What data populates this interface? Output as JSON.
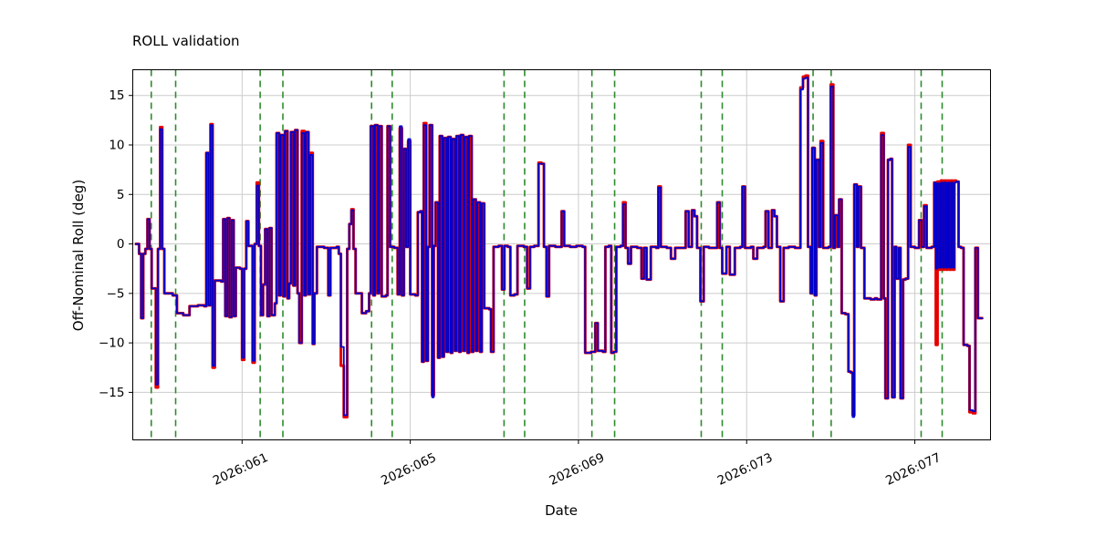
{
  "chart_data": {
    "type": "line",
    "title": "ROLL validation",
    "xlabel": "Date",
    "ylabel": "Off-Nominal Roll (deg)",
    "xlim": [
      58.4,
      78.8
    ],
    "ylim": [
      -19.8,
      17.6
    ],
    "grid": true,
    "grid_color": "#cccccc",
    "background": "#ffffff",
    "xticks": {
      "values": [
        61,
        65,
        69,
        73,
        77
      ],
      "labels": [
        "2026:061",
        "2026:065",
        "2026:069",
        "2026:073",
        "2026:077"
      ]
    },
    "yticks": {
      "values": [
        -15,
        -10,
        -5,
        0,
        5,
        10,
        15
      ],
      "labels": [
        "−15",
        "−10",
        "−5",
        "0",
        "5",
        "10",
        "15"
      ]
    },
    "vlines": {
      "color": "#2e8b2e",
      "style": "dashed",
      "x": [
        58.84,
        59.42,
        61.43,
        61.97,
        64.08,
        64.57,
        67.23,
        67.72,
        69.32,
        69.86,
        71.92,
        72.42,
        74.58,
        75.01,
        77.15,
        77.65
      ]
    },
    "series": [
      {
        "name": "red",
        "color": "#e50000",
        "linewidth": 3
      },
      {
        "name": "blue",
        "color": "#0000cd",
        "linewidth": 1.8
      }
    ],
    "points_format": "[day_of_year_2026, red_deg, blue_deg(optional, equals red when omitted)]",
    "points": [
      [
        58.45,
        0
      ],
      [
        58.55,
        -1
      ],
      [
        58.6,
        -7.5
      ],
      [
        58.65,
        -1
      ],
      [
        58.7,
        -0.5
      ],
      [
        58.75,
        2.5
      ],
      [
        58.8,
        -0.5
      ],
      [
        58.85,
        -4.5
      ],
      [
        58.95,
        -14.5,
        -14.2
      ],
      [
        59.0,
        -0.5
      ],
      [
        59.05,
        11.8,
        11.6
      ],
      [
        59.1,
        -0.5
      ],
      [
        59.15,
        -5
      ],
      [
        59.35,
        -5.2
      ],
      [
        59.45,
        -7
      ],
      [
        59.6,
        -7.2
      ],
      [
        59.75,
        -6.3
      ],
      [
        59.95,
        -6.2
      ],
      [
        60.1,
        -6.3
      ],
      [
        60.15,
        9.2
      ],
      [
        60.2,
        -6.2
      ],
      [
        60.25,
        12.1,
        12
      ],
      [
        60.3,
        -12.5,
        -12.3
      ],
      [
        60.35,
        -3.7
      ],
      [
        60.5,
        -3.8
      ],
      [
        60.55,
        2.5
      ],
      [
        60.6,
        -7.3
      ],
      [
        60.65,
        2.6
      ],
      [
        60.7,
        -7.4
      ],
      [
        60.75,
        2.4
      ],
      [
        60.8,
        -7.3
      ],
      [
        60.85,
        -2.4
      ],
      [
        60.95,
        -2.5
      ],
      [
        61.0,
        -11.7,
        -11.5
      ],
      [
        61.05,
        -2.5
      ],
      [
        61.1,
        2.3
      ],
      [
        61.15,
        -0.2
      ],
      [
        61.25,
        -12,
        -11.8
      ],
      [
        61.3,
        0
      ],
      [
        61.35,
        6.2,
        5.9
      ],
      [
        61.4,
        -0.2
      ],
      [
        61.45,
        -7.2
      ],
      [
        61.5,
        -4.1
      ],
      [
        61.55,
        1.5
      ],
      [
        61.6,
        -7.3
      ],
      [
        61.65,
        1.6
      ],
      [
        61.7,
        -7.2
      ],
      [
        61.78,
        -6
      ],
      [
        61.82,
        11.2
      ],
      [
        61.88,
        -5.2
      ],
      [
        61.92,
        11
      ],
      [
        61.98,
        -5.3
      ],
      [
        62.02,
        11.4
      ],
      [
        62.08,
        -5.5
      ],
      [
        62.12,
        -4
      ],
      [
        62.16,
        11.3
      ],
      [
        62.22,
        -4.2
      ],
      [
        62.26,
        11.5
      ],
      [
        62.32,
        -5
      ],
      [
        62.36,
        -10
      ],
      [
        62.42,
        11.4,
        11.2
      ],
      [
        62.48,
        -5.2
      ],
      [
        62.52,
        11.3
      ],
      [
        62.58,
        -5.1
      ],
      [
        62.62,
        9.2,
        9
      ],
      [
        62.68,
        -10.1
      ],
      [
        62.72,
        -5
      ],
      [
        62.78,
        -0.3
      ],
      [
        62.95,
        -0.4
      ],
      [
        63.05,
        -5.2
      ],
      [
        63.1,
        -0.4
      ],
      [
        63.25,
        -0.3
      ],
      [
        63.3,
        -1
      ],
      [
        63.35,
        -12.3,
        -10.4
      ],
      [
        63.42,
        -17.5,
        -17.3
      ],
      [
        63.5,
        -0.5
      ],
      [
        63.55,
        2
      ],
      [
        63.6,
        3.5,
        3.4
      ],
      [
        63.65,
        -0.5
      ],
      [
        63.7,
        -5
      ],
      [
        63.85,
        -7
      ],
      [
        63.95,
        -6.8
      ],
      [
        64.02,
        -5
      ],
      [
        64.06,
        11.9
      ],
      [
        64.12,
        -5.2
      ],
      [
        64.16,
        12
      ],
      [
        64.22,
        -5
      ],
      [
        64.26,
        11.9
      ],
      [
        64.32,
        -5.3
      ],
      [
        64.42,
        -5.2
      ],
      [
        64.46,
        11.9
      ],
      [
        64.52,
        -0.3
      ],
      [
        64.62,
        -0.4
      ],
      [
        64.7,
        -5.1
      ],
      [
        64.75,
        11.7,
        11.9
      ],
      [
        64.8,
        -5.2
      ],
      [
        64.85,
        9.6
      ],
      [
        64.9,
        -0.3
      ],
      [
        64.95,
        10.4,
        10.6
      ],
      [
        65.0,
        -5.1
      ],
      [
        65.12,
        -5.2
      ],
      [
        65.18,
        3.2
      ],
      [
        65.24,
        3.3
      ],
      [
        65.28,
        -11.9
      ],
      [
        65.32,
        12.2,
        12
      ],
      [
        65.38,
        -11.8
      ],
      [
        65.42,
        -0.3
      ],
      [
        65.46,
        12
      ],
      [
        65.52,
        -15.3,
        -15.5
      ],
      [
        65.56,
        -0.2
      ],
      [
        65.6,
        4.2
      ],
      [
        65.66,
        -11.5
      ],
      [
        65.7,
        10.9
      ],
      [
        65.76,
        -11.4
      ],
      [
        65.8,
        10.7
      ],
      [
        65.86,
        -10.9
      ],
      [
        65.9,
        10.8
      ],
      [
        65.96,
        -11
      ],
      [
        66.0,
        10.6
      ],
      [
        66.06,
        -10.8
      ],
      [
        66.1,
        10.9
      ],
      [
        66.16,
        -10.9
      ],
      [
        66.2,
        11
      ],
      [
        66.26,
        -10.8
      ],
      [
        66.3,
        10.8
      ],
      [
        66.36,
        -11
      ],
      [
        66.4,
        10.9
      ],
      [
        66.46,
        -10.9
      ],
      [
        66.5,
        4.5
      ],
      [
        66.56,
        -10.8
      ],
      [
        66.6,
        4.2
      ],
      [
        66.66,
        -10.9
      ],
      [
        66.7,
        4.1
      ],
      [
        66.76,
        -6.5
      ],
      [
        66.88,
        -6.6
      ],
      [
        66.92,
        -10.9
      ],
      [
        66.98,
        -0.3
      ],
      [
        67.1,
        -0.2
      ],
      [
        67.18,
        -4.6
      ],
      [
        67.24,
        -0.2
      ],
      [
        67.32,
        -0.3
      ],
      [
        67.38,
        -5.2
      ],
      [
        67.48,
        -5.1
      ],
      [
        67.55,
        -0.2
      ],
      [
        67.7,
        -0.3
      ],
      [
        67.78,
        -4.5
      ],
      [
        67.85,
        -0.3
      ],
      [
        67.95,
        -0.2
      ],
      [
        68.05,
        8.2,
        8.1
      ],
      [
        68.12,
        8.1
      ],
      [
        68.18,
        -0.3
      ],
      [
        68.24,
        -5.3
      ],
      [
        68.3,
        -0.2
      ],
      [
        68.45,
        -0.3
      ],
      [
        68.6,
        3.3
      ],
      [
        68.66,
        -0.2
      ],
      [
        68.8,
        -0.3
      ],
      [
        68.95,
        -0.2
      ],
      [
        69.1,
        -0.3
      ],
      [
        69.16,
        -11
      ],
      [
        69.3,
        -10.9
      ],
      [
        69.4,
        -8
      ],
      [
        69.46,
        -10.8
      ],
      [
        69.58,
        -10.9
      ],
      [
        69.64,
        -0.3
      ],
      [
        69.72,
        -0.2
      ],
      [
        69.78,
        -11
      ],
      [
        69.84,
        -10.9
      ],
      [
        69.9,
        -0.3
      ],
      [
        70.0,
        -0.2
      ],
      [
        70.06,
        4.2,
        4
      ],
      [
        70.12,
        -0.4
      ],
      [
        70.18,
        -2
      ],
      [
        70.25,
        -0.3
      ],
      [
        70.4,
        -0.4
      ],
      [
        70.5,
        -3.5
      ],
      [
        70.56,
        -0.4
      ],
      [
        70.62,
        -3.6
      ],
      [
        70.72,
        -0.3
      ],
      [
        70.85,
        -0.4
      ],
      [
        70.9,
        5.8,
        5.7
      ],
      [
        70.96,
        -0.3
      ],
      [
        71.1,
        -0.4
      ],
      [
        71.2,
        -1.5
      ],
      [
        71.3,
        -0.4
      ],
      [
        71.5,
        -0.4
      ],
      [
        71.55,
        3.3
      ],
      [
        71.62,
        -0.3
      ],
      [
        71.7,
        3.4
      ],
      [
        71.76,
        2.8
      ],
      [
        71.82,
        -0.4
      ],
      [
        71.9,
        -5.8
      ],
      [
        71.98,
        -0.3
      ],
      [
        72.1,
        -0.4
      ],
      [
        72.3,
        4.2
      ],
      [
        72.36,
        -0.4
      ],
      [
        72.42,
        -3
      ],
      [
        72.52,
        -0.3
      ],
      [
        72.6,
        -3.1
      ],
      [
        72.72,
        -0.4
      ],
      [
        72.85,
        -0.3
      ],
      [
        72.9,
        5.8
      ],
      [
        72.96,
        -0.4
      ],
      [
        73.1,
        -0.3
      ],
      [
        73.16,
        -1.5
      ],
      [
        73.25,
        -0.4
      ],
      [
        73.4,
        -0.3
      ],
      [
        73.45,
        3.3
      ],
      [
        73.52,
        -0.4
      ],
      [
        73.6,
        3.4
      ],
      [
        73.66,
        2.8
      ],
      [
        73.72,
        -0.3
      ],
      [
        73.8,
        -5.8
      ],
      [
        73.88,
        -0.4
      ],
      [
        74.0,
        -0.3
      ],
      [
        74.15,
        -0.4
      ],
      [
        74.28,
        15.8,
        15.6
      ],
      [
        74.34,
        16.9,
        16.7
      ],
      [
        74.4,
        17,
        16.8
      ],
      [
        74.46,
        -0.3
      ],
      [
        74.52,
        -5
      ],
      [
        74.56,
        9.7
      ],
      [
        74.62,
        -5.2
      ],
      [
        74.66,
        8.5
      ],
      [
        74.72,
        -0.3
      ],
      [
        74.76,
        10.4,
        10.2
      ],
      [
        74.82,
        -0.4
      ],
      [
        74.95,
        -0.3
      ],
      [
        75.0,
        16.1,
        15.9
      ],
      [
        75.06,
        -0.4
      ],
      [
        75.1,
        2.9
      ],
      [
        75.16,
        -0.3
      ],
      [
        75.2,
        4.5
      ],
      [
        75.26,
        -7
      ],
      [
        75.35,
        -7.1
      ],
      [
        75.42,
        -12.9
      ],
      [
        75.48,
        -13
      ],
      [
        75.52,
        -17.3,
        -17.5
      ],
      [
        75.56,
        6
      ],
      [
        75.62,
        -0.3
      ],
      [
        75.66,
        5.8
      ],
      [
        75.72,
        -0.4
      ],
      [
        75.8,
        -5.5
      ],
      [
        75.95,
        -5.6
      ],
      [
        76.05,
        -5.5
      ],
      [
        76.1,
        -5.6
      ],
      [
        76.2,
        11.2,
        11
      ],
      [
        76.26,
        -5.5
      ],
      [
        76.3,
        -15.6
      ],
      [
        76.36,
        8.5
      ],
      [
        76.42,
        8.6
      ],
      [
        76.46,
        -15.5
      ],
      [
        76.52,
        -0.3
      ],
      [
        76.56,
        -3.5
      ],
      [
        76.62,
        -0.4
      ],
      [
        76.66,
        -15.6
      ],
      [
        76.72,
        -3.6
      ],
      [
        76.78,
        -3.5
      ],
      [
        76.84,
        10,
        9.8
      ],
      [
        76.9,
        -0.3
      ],
      [
        77.0,
        -0.4
      ],
      [
        77.1,
        2.4
      ],
      [
        77.16,
        -0.3
      ],
      [
        77.22,
        3.9,
        3.8
      ],
      [
        77.28,
        -0.4
      ],
      [
        77.4,
        -0.3
      ],
      [
        77.46,
        6.2
      ],
      [
        77.5,
        -10.2,
        -2.5
      ],
      [
        77.54,
        6.3,
        6.1
      ],
      [
        77.58,
        -2.6,
        -2.4
      ],
      [
        77.62,
        6.4,
        6.2
      ],
      [
        77.66,
        -2.6,
        -2.4
      ],
      [
        77.7,
        6.4,
        6.2
      ],
      [
        77.74,
        -2.6,
        -2.4
      ],
      [
        77.78,
        6.4,
        6.2
      ],
      [
        77.82,
        -2.6,
        -2.4
      ],
      [
        77.86,
        6.4,
        6.2
      ],
      [
        77.9,
        -2.6,
        -2.4
      ],
      [
        77.94,
        6.4,
        6.2
      ],
      [
        77.98,
        6.3
      ],
      [
        78.04,
        -0.3
      ],
      [
        78.1,
        -0.4
      ],
      [
        78.16,
        -10.2
      ],
      [
        78.25,
        -10.3
      ],
      [
        78.3,
        -17,
        -16.8
      ],
      [
        78.38,
        -17.1,
        -16.9
      ],
      [
        78.44,
        -0.4
      ],
      [
        78.5,
        -7.5
      ],
      [
        78.6,
        -7.6
      ]
    ]
  }
}
